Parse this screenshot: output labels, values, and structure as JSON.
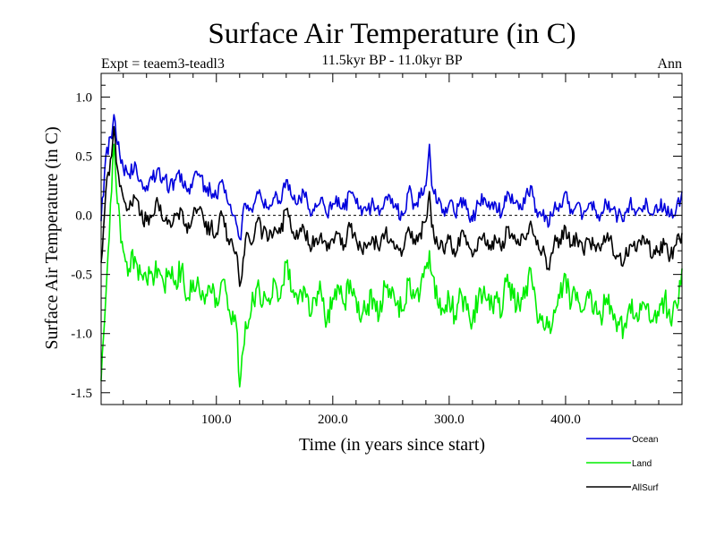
{
  "header": {
    "title": "Surface Air Temperature (in C)",
    "experiment": "Expt = teaem3-teadl3",
    "period": "11.5kyr BP - 11.0kyr BP",
    "season": "Ann"
  },
  "chart_data": {
    "type": "line",
    "title": "Surface Air Temperature (in C)",
    "xlabel": "Time (in years since start)",
    "ylabel": "Surface Air Temperature (in C)",
    "xlim": [
      1,
      500
    ],
    "ylim": [
      -1.6,
      1.2
    ],
    "x_ticks": [
      100,
      200,
      300,
      400
    ],
    "x_tick_labels": [
      "100.0",
      "200.0",
      "300.0",
      "400.0"
    ],
    "y_ticks": [
      1.0,
      0.5,
      0.0,
      -0.5,
      -1.0,
      -1.5
    ],
    "y_tick_labels": [
      "1.0",
      "0.5",
      "0.0",
      "-0.5",
      "-1.0",
      "-1.5"
    ],
    "zero_line": "dashed",
    "legend_position": "bottom-right, outside plot",
    "series": [
      {
        "name": "Ocean",
        "color": "#0000dd",
        "x": [
          1,
          5,
          10,
          12,
          15,
          20,
          25,
          30,
          35,
          40,
          45,
          50,
          55,
          60,
          65,
          70,
          75,
          80,
          85,
          90,
          95,
          100,
          105,
          110,
          115,
          118,
          120,
          125,
          130,
          135,
          140,
          145,
          150,
          155,
          160,
          165,
          170,
          175,
          180,
          185,
          190,
          195,
          200,
          205,
          210,
          215,
          220,
          225,
          230,
          235,
          240,
          245,
          250,
          255,
          260,
          265,
          270,
          275,
          280,
          283,
          285,
          290,
          295,
          300,
          305,
          310,
          315,
          320,
          325,
          330,
          335,
          340,
          345,
          350,
          355,
          360,
          365,
          370,
          375,
          380,
          385,
          390,
          395,
          400,
          405,
          410,
          415,
          420,
          425,
          430,
          435,
          440,
          445,
          450,
          455,
          460,
          465,
          470,
          475,
          480,
          485,
          490,
          495,
          500
        ],
        "values": [
          -0.05,
          0.5,
          0.65,
          0.85,
          0.6,
          0.4,
          0.35,
          0.45,
          0.3,
          0.25,
          0.3,
          0.4,
          0.3,
          0.25,
          0.3,
          0.35,
          0.2,
          0.3,
          0.35,
          0.25,
          0.2,
          0.15,
          0.3,
          0.1,
          0.0,
          -0.1,
          -0.2,
          0.1,
          0.05,
          0.2,
          0.1,
          0.05,
          0.15,
          0.1,
          0.3,
          0.15,
          0.1,
          0.2,
          0.05,
          0.1,
          0.15,
          0.0,
          0.1,
          0.15,
          0.05,
          0.2,
          0.1,
          0.0,
          0.05,
          0.1,
          0.0,
          0.15,
          0.1,
          0.05,
          0.0,
          0.2,
          0.1,
          0.15,
          0.25,
          0.6,
          0.25,
          0.1,
          0.05,
          0.1,
          0.0,
          0.15,
          0.05,
          -0.05,
          0.1,
          0.15,
          0.05,
          0.1,
          0.0,
          0.2,
          0.1,
          0.05,
          0.1,
          0.25,
          0.05,
          0.0,
          -0.1,
          0.05,
          0.1,
          0.2,
          0.05,
          0.1,
          0.0,
          0.1,
          0.05,
          0.0,
          0.1,
          0.05,
          0.0,
          -0.05,
          0.1,
          0.0,
          0.05,
          0.1,
          0.0,
          0.05,
          0.1,
          0.0,
          0.05,
          0.2
        ]
      },
      {
        "name": "Land",
        "color": "#00ee00",
        "x": [
          1,
          5,
          10,
          12,
          15,
          20,
          25,
          30,
          35,
          40,
          45,
          50,
          55,
          60,
          65,
          70,
          75,
          80,
          85,
          90,
          95,
          100,
          105,
          110,
          115,
          118,
          120,
          125,
          130,
          135,
          140,
          145,
          150,
          155,
          160,
          165,
          170,
          175,
          180,
          185,
          190,
          195,
          200,
          205,
          210,
          215,
          220,
          225,
          230,
          235,
          240,
          245,
          250,
          255,
          260,
          265,
          270,
          275,
          280,
          283,
          285,
          290,
          295,
          300,
          305,
          310,
          315,
          320,
          325,
          330,
          335,
          340,
          345,
          350,
          355,
          360,
          365,
          370,
          375,
          380,
          385,
          390,
          395,
          400,
          405,
          410,
          415,
          420,
          425,
          430,
          435,
          440,
          445,
          450,
          455,
          460,
          465,
          470,
          475,
          480,
          485,
          490,
          495,
          500
        ],
        "values": [
          -1.4,
          -0.7,
          0.2,
          0.6,
          0.1,
          -0.3,
          -0.45,
          -0.35,
          -0.5,
          -0.55,
          -0.5,
          -0.45,
          -0.6,
          -0.5,
          -0.55,
          -0.45,
          -0.7,
          -0.55,
          -0.6,
          -0.75,
          -0.65,
          -0.7,
          -0.55,
          -0.8,
          -0.9,
          -1.0,
          -1.45,
          -0.9,
          -0.8,
          -0.6,
          -0.75,
          -0.7,
          -0.55,
          -0.7,
          -0.4,
          -0.65,
          -0.75,
          -0.6,
          -0.85,
          -0.7,
          -0.65,
          -0.9,
          -0.7,
          -0.6,
          -0.75,
          -0.55,
          -0.7,
          -0.85,
          -0.75,
          -0.7,
          -0.85,
          -0.6,
          -0.7,
          -0.75,
          -0.8,
          -0.55,
          -0.7,
          -0.65,
          -0.45,
          -0.3,
          -0.5,
          -0.75,
          -0.8,
          -0.7,
          -0.85,
          -0.65,
          -0.8,
          -0.9,
          -0.7,
          -0.6,
          -0.8,
          -0.7,
          -0.85,
          -0.5,
          -0.7,
          -0.75,
          -0.7,
          -0.45,
          -0.8,
          -0.85,
          -0.95,
          -0.8,
          -0.7,
          -0.5,
          -0.75,
          -0.65,
          -0.8,
          -0.7,
          -0.75,
          -0.85,
          -0.7,
          -0.8,
          -0.9,
          -0.95,
          -0.75,
          -0.85,
          -0.8,
          -0.75,
          -0.9,
          -0.85,
          -0.7,
          -0.9,
          -0.75,
          -0.45
        ]
      },
      {
        "name": "AllSurf",
        "color": "#000000",
        "x": [
          1,
          5,
          10,
          12,
          15,
          20,
          25,
          30,
          35,
          40,
          45,
          50,
          55,
          60,
          65,
          70,
          75,
          80,
          85,
          90,
          95,
          100,
          105,
          110,
          115,
          118,
          120,
          125,
          130,
          135,
          140,
          145,
          150,
          155,
          160,
          165,
          170,
          175,
          180,
          185,
          190,
          195,
          200,
          205,
          210,
          215,
          220,
          225,
          230,
          235,
          240,
          245,
          250,
          255,
          260,
          265,
          270,
          275,
          280,
          283,
          285,
          290,
          295,
          300,
          305,
          310,
          315,
          320,
          325,
          330,
          335,
          340,
          345,
          350,
          355,
          360,
          365,
          370,
          375,
          380,
          385,
          390,
          395,
          400,
          405,
          410,
          415,
          420,
          425,
          430,
          435,
          440,
          445,
          450,
          455,
          460,
          465,
          470,
          475,
          480,
          485,
          490,
          495,
          500
        ],
        "values": [
          -0.4,
          0.2,
          0.5,
          0.75,
          0.4,
          0.15,
          0.05,
          0.15,
          0.0,
          -0.05,
          0.0,
          0.1,
          -0.05,
          -0.05,
          0.0,
          0.05,
          -0.15,
          0.0,
          0.05,
          -0.1,
          -0.1,
          -0.15,
          0.0,
          -0.2,
          -0.3,
          -0.35,
          -0.6,
          -0.2,
          -0.25,
          -0.05,
          -0.15,
          -0.2,
          -0.1,
          -0.15,
          0.05,
          -0.15,
          -0.2,
          -0.1,
          -0.25,
          -0.2,
          -0.15,
          -0.3,
          -0.2,
          -0.15,
          -0.25,
          -0.1,
          -0.2,
          -0.3,
          -0.25,
          -0.2,
          -0.3,
          -0.15,
          -0.2,
          -0.25,
          -0.3,
          -0.1,
          -0.2,
          -0.15,
          -0.05,
          0.2,
          -0.1,
          -0.25,
          -0.3,
          -0.2,
          -0.35,
          -0.15,
          -0.25,
          -0.35,
          -0.2,
          -0.15,
          -0.25,
          -0.2,
          -0.3,
          -0.1,
          -0.2,
          -0.25,
          -0.2,
          -0.05,
          -0.25,
          -0.3,
          -0.45,
          -0.25,
          -0.2,
          -0.1,
          -0.25,
          -0.2,
          -0.3,
          -0.2,
          -0.25,
          -0.3,
          -0.2,
          -0.25,
          -0.35,
          -0.4,
          -0.25,
          -0.3,
          -0.25,
          -0.2,
          -0.35,
          -0.3,
          -0.25,
          -0.35,
          -0.25,
          -0.15
        ]
      }
    ]
  }
}
